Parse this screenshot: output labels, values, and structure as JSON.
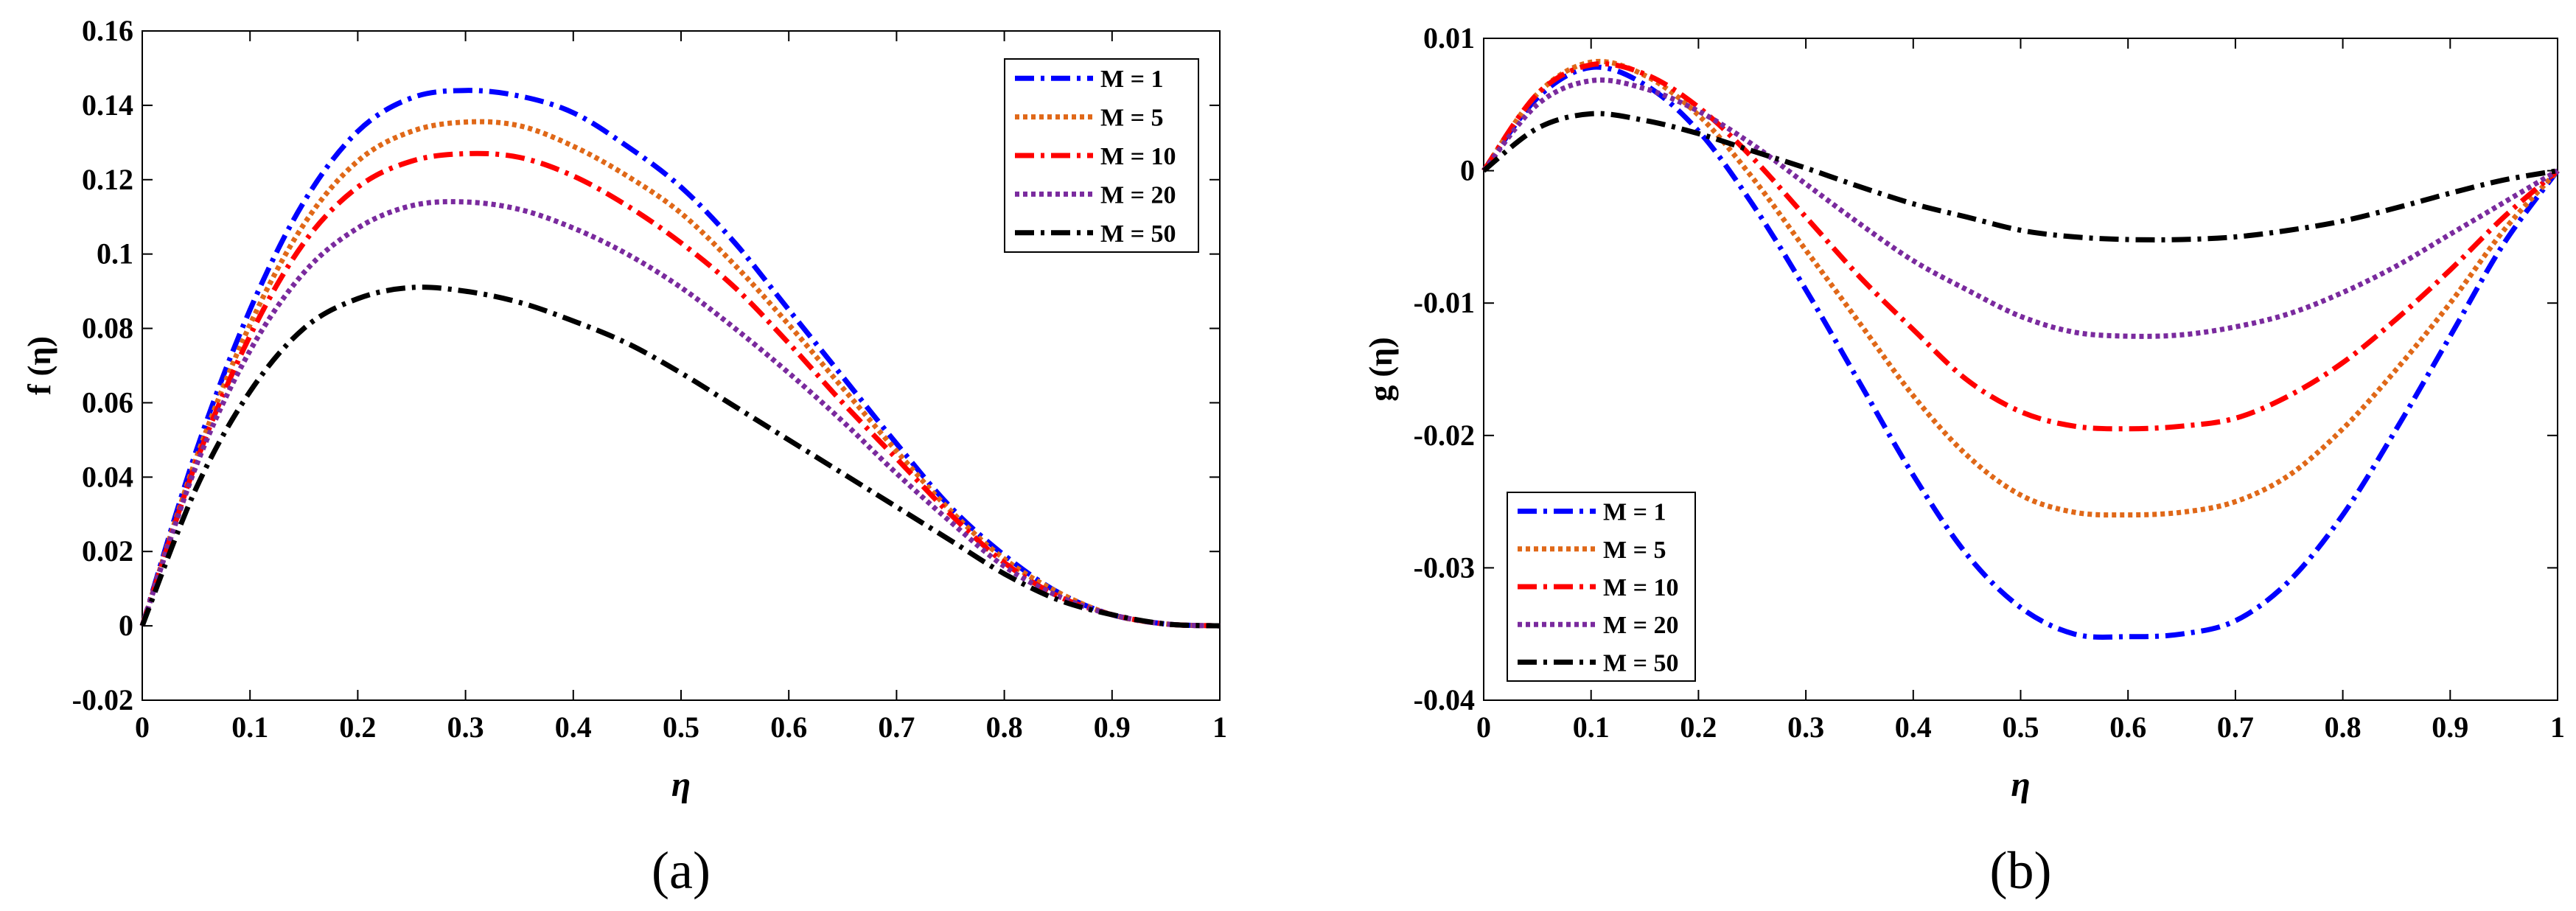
{
  "chart_data": [
    {
      "type": "line",
      "panel_label": "(a)",
      "xlabel": "η",
      "ylabel": "f (η)",
      "xlim": [
        0,
        1
      ],
      "ylim": [
        -0.02,
        0.16
      ],
      "xticks": [
        "0",
        "0.1",
        "0.2",
        "0.3",
        "0.4",
        "0.5",
        "0.6",
        "0.7",
        "0.8",
        "0.9",
        "1"
      ],
      "yticks": [
        "-0.02",
        "0",
        "0.02",
        "0.04",
        "0.06",
        "0.08",
        "0.1",
        "0.12",
        "0.14",
        "0.16"
      ],
      "legend_position": "top-right",
      "x": [
        0,
        0.05,
        0.1,
        0.15,
        0.2,
        0.25,
        0.3,
        0.35,
        0.4,
        0.45,
        0.5,
        0.55,
        0.6,
        0.65,
        0.7,
        0.75,
        0.8,
        0.85,
        0.9,
        0.95,
        1
      ],
      "series": [
        {
          "name": "M = 1",
          "color": "#0000ff",
          "dash": "dashdot",
          "values": [
            0,
            0.047,
            0.085,
            0.114,
            0.133,
            0.142,
            0.144,
            0.1425,
            0.138,
            0.129,
            0.118,
            0.103,
            0.085,
            0.067,
            0.049,
            0.032,
            0.019,
            0.009,
            0.003,
            0.0005,
            0
          ]
        },
        {
          "name": "M = 5",
          "color": "#e06818",
          "dash": "dotted",
          "values": [
            0,
            0.045,
            0.081,
            0.108,
            0.125,
            0.133,
            0.1355,
            0.1345,
            0.129,
            0.121,
            0.111,
            0.097,
            0.081,
            0.064,
            0.047,
            0.031,
            0.018,
            0.009,
            0.003,
            0.0005,
            0
          ]
        },
        {
          "name": "M = 10",
          "color": "#ff0000",
          "dash": "dashdot",
          "values": [
            0,
            0.044,
            0.078,
            0.103,
            0.118,
            0.125,
            0.127,
            0.126,
            0.121,
            0.113,
            0.103,
            0.091,
            0.076,
            0.06,
            0.045,
            0.03,
            0.017,
            0.008,
            0.003,
            0.0005,
            0
          ]
        },
        {
          "name": "M = 20",
          "color": "#7a2a9e",
          "dash": "dotted",
          "values": [
            0,
            0.043,
            0.074,
            0.095,
            0.107,
            0.113,
            0.114,
            0.112,
            0.107,
            0.1,
            0.091,
            0.08,
            0.068,
            0.055,
            0.041,
            0.028,
            0.016,
            0.008,
            0.003,
            0.0005,
            0
          ]
        },
        {
          "name": "M = 50",
          "color": "#000000",
          "dash": "dashdot",
          "values": [
            0,
            0.037,
            0.063,
            0.08,
            0.088,
            0.091,
            0.09,
            0.087,
            0.082,
            0.076,
            0.068,
            0.059,
            0.05,
            0.041,
            0.032,
            0.023,
            0.014,
            0.007,
            0.003,
            0.0005,
            0
          ]
        }
      ]
    },
    {
      "type": "line",
      "panel_label": "(b)",
      "xlabel": "η",
      "ylabel": "g (η)",
      "xlim": [
        0,
        1
      ],
      "ylim": [
        -0.04,
        0.01
      ],
      "xticks": [
        "0",
        "0.1",
        "0.2",
        "0.3",
        "0.4",
        "0.5",
        "0.6",
        "0.7",
        "0.8",
        "0.9",
        "1"
      ],
      "yticks": [
        "-0.04",
        "-0.03",
        "-0.02",
        "-0.01",
        "0",
        "0.01"
      ],
      "legend_position": "bottom-left",
      "x": [
        0,
        0.05,
        0.1,
        0.15,
        0.2,
        0.25,
        0.3,
        0.35,
        0.4,
        0.45,
        0.5,
        0.55,
        0.6,
        0.65,
        0.7,
        0.75,
        0.8,
        0.85,
        0.9,
        0.95,
        1
      ],
      "series": [
        {
          "name": "M = 1",
          "color": "#0000ff",
          "dash": "dashdot",
          "values": [
            0,
            0.0055,
            0.0078,
            0.0065,
            0.003,
            -0.0025,
            -0.009,
            -0.016,
            -0.023,
            -0.029,
            -0.033,
            -0.035,
            -0.0352,
            -0.035,
            -0.034,
            -0.031,
            -0.026,
            -0.0195,
            -0.0125,
            -0.0055,
            0
          ]
        },
        {
          "name": "M = 5",
          "color": "#e06818",
          "dash": "dotted",
          "values": [
            0,
            0.0058,
            0.0082,
            0.0072,
            0.0042,
            -0.0005,
            -0.006,
            -0.0115,
            -0.017,
            -0.0215,
            -0.0245,
            -0.0258,
            -0.026,
            -0.0258,
            -0.025,
            -0.023,
            -0.0195,
            -0.015,
            -0.01,
            -0.0045,
            0
          ]
        },
        {
          "name": "M = 10",
          "color": "#ff0000",
          "dash": "dashdot",
          "values": [
            0,
            0.0058,
            0.008,
            0.0073,
            0.0048,
            0.001,
            -0.0035,
            -0.008,
            -0.012,
            -0.0158,
            -0.0182,
            -0.0193,
            -0.0195,
            -0.0193,
            -0.0187,
            -0.017,
            -0.0145,
            -0.0112,
            -0.0075,
            -0.0035,
            0
          ]
        },
        {
          "name": "M = 20",
          "color": "#7a2a9e",
          "dash": "dotted",
          "values": [
            0,
            0.005,
            0.0068,
            0.0062,
            0.0045,
            0.002,
            -0.001,
            -0.004,
            -0.0068,
            -0.009,
            -0.011,
            -0.0122,
            -0.0125,
            -0.0124,
            -0.0118,
            -0.0108,
            -0.0092,
            -0.0072,
            -0.0048,
            -0.0024,
            0
          ]
        },
        {
          "name": "M = 50",
          "color": "#000000",
          "dash": "dashdot",
          "values": [
            0,
            0.0032,
            0.0043,
            0.0038,
            0.0028,
            0.0015,
            0.0002,
            -0.0012,
            -0.0025,
            -0.0035,
            -0.0045,
            -0.005,
            -0.0052,
            -0.0052,
            -0.005,
            -0.0045,
            -0.0038,
            -0.0028,
            -0.0017,
            -0.0007,
            0
          ]
        }
      ]
    }
  ]
}
